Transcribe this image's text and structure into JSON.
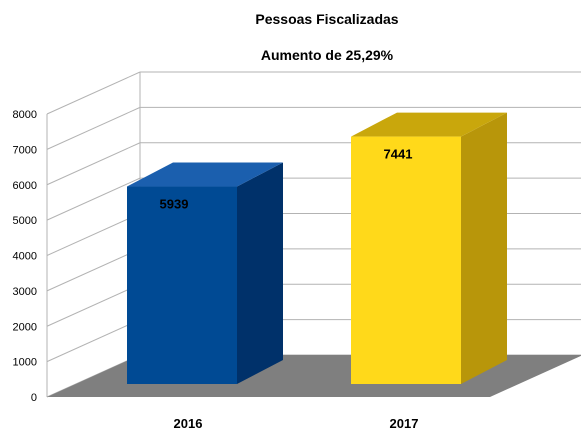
{
  "chart_data": {
    "type": "bar",
    "title": "Pessoas Fiscalizadas",
    "subtitle": "Aumento de 25,29%",
    "categories": [
      "2016",
      "2017"
    ],
    "values": [
      5939,
      7441
    ],
    "data_labels": [
      "5939",
      "7441"
    ],
    "y_ticks": [
      "0",
      "1000",
      "2000",
      "3000",
      "4000",
      "5000",
      "6000",
      "7000",
      "8000"
    ],
    "ylim": [
      0,
      8000
    ],
    "xlabel": "",
    "ylabel": "",
    "grid": true,
    "legend": false,
    "style": "3d",
    "colors": {
      "bars": [
        "#004a94",
        "#f5cc0a"
      ],
      "bar_fronts": [
        "#004a94",
        "#ffd91a"
      ],
      "bar_sides": [
        "#00316a",
        "#b8960a"
      ],
      "bar_tops": [
        "#1b5fae",
        "#c9a70c"
      ],
      "floor": "#7f7f7f",
      "grid": "#b3b3b3"
    }
  }
}
